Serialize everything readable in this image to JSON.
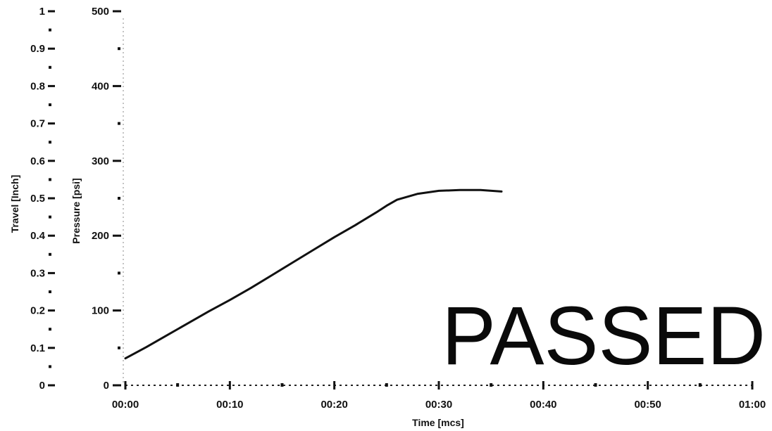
{
  "chart_data": {
    "type": "line",
    "title": "",
    "xlabel": "Time [mcs]",
    "ylabel_left": "Travel [Inch]",
    "ylabel_right": "Pressure [psi]",
    "x_ticks": [
      "00:00",
      "00:10",
      "00:20",
      "00:30",
      "00:40",
      "00:50",
      "01:00"
    ],
    "xlim_seconds": [
      0,
      60
    ],
    "travel_ticks": [
      "0",
      "0.1",
      "0.2",
      "0.3",
      "0.4",
      "0.5",
      "0.6",
      "0.7",
      "0.8",
      "0.9",
      "1"
    ],
    "travel_ylim": [
      0,
      1
    ],
    "pressure_ticks": [
      "0",
      "100",
      "200",
      "300",
      "400",
      "500"
    ],
    "pressure_ylim": [
      0,
      500
    ],
    "grid": false,
    "legend": "none",
    "series": [
      {
        "axis": "pressure",
        "color": "#111111",
        "x_seconds": [
          0,
          2,
          4,
          6,
          8,
          10,
          12,
          14,
          16,
          18,
          20,
          22,
          24,
          25,
          26,
          28,
          30,
          32,
          34,
          36
        ],
        "values": [
          36,
          51,
          67,
          83,
          99,
          114,
          130,
          147,
          164,
          181,
          198,
          214,
          231,
          240,
          248,
          256,
          260,
          261,
          261,
          259
        ]
      }
    ]
  },
  "stamp": {
    "text": "PASSED"
  }
}
